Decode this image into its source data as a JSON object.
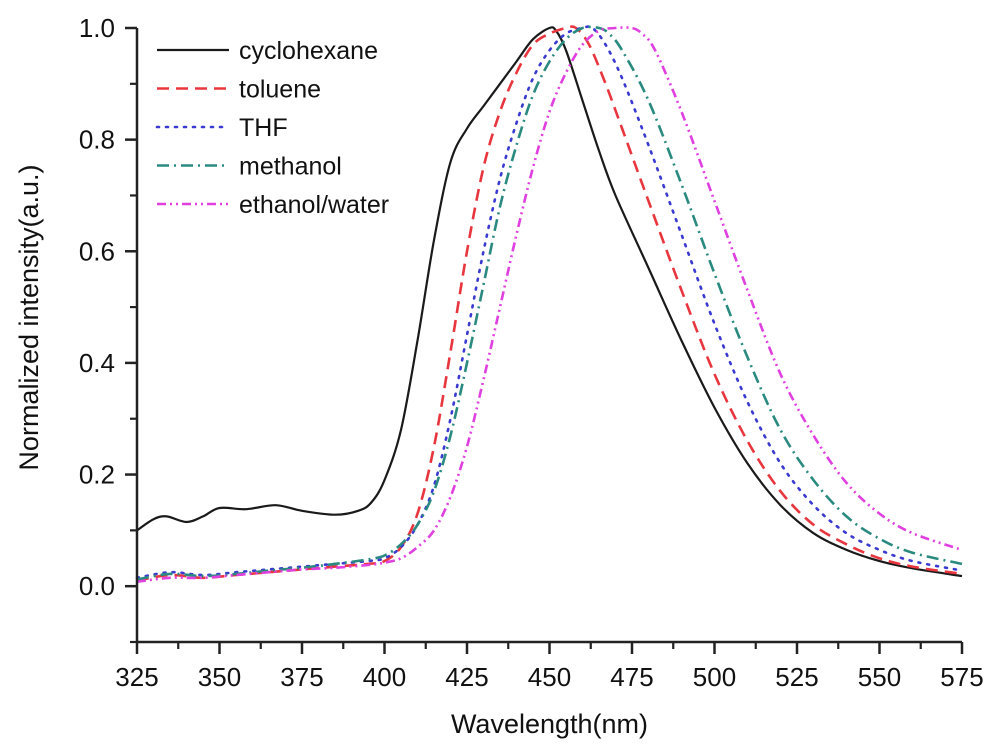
{
  "chart_data": {
    "type": "line",
    "title": "",
    "xlabel": "Wavelength(nm)",
    "ylabel": "Normalized intensity(a.u.)",
    "xlim": [
      325,
      575
    ],
    "ylim": [
      -0.1,
      1.0
    ],
    "xticks": [
      325,
      350,
      375,
      400,
      425,
      450,
      475,
      500,
      525,
      550,
      575
    ],
    "xtick_labels": [
      "325",
      "350",
      "375",
      "400",
      "425",
      "450",
      "475",
      "500",
      "525",
      "550",
      "575"
    ],
    "yticks": [
      0.0,
      0.2,
      0.4,
      0.6,
      0.8,
      1.0
    ],
    "ytick_labels": [
      "0.0",
      "0.2",
      "0.4",
      "0.6",
      "0.8",
      "1.0"
    ],
    "grid": false,
    "legend_position": "top-left",
    "series": [
      {
        "name": "cyclohexane",
        "color": "#1a1a1a",
        "style": "solid",
        "x": [
          325,
          330,
          334,
          340,
          345,
          350,
          358,
          367,
          375,
          385,
          392,
          396,
          400,
          405,
          410,
          415,
          420,
          425,
          430,
          435,
          440,
          445,
          450,
          452,
          455,
          460,
          465,
          470,
          480,
          490,
          500,
          510,
          520,
          530,
          540,
          550,
          560,
          575
        ],
        "y": [
          0.1,
          0.12,
          0.125,
          0.115,
          0.125,
          0.14,
          0.138,
          0.145,
          0.135,
          0.128,
          0.135,
          0.15,
          0.19,
          0.28,
          0.44,
          0.62,
          0.76,
          0.82,
          0.86,
          0.9,
          0.94,
          0.98,
          1.0,
          0.995,
          0.96,
          0.87,
          0.78,
          0.7,
          0.57,
          0.44,
          0.32,
          0.22,
          0.145,
          0.095,
          0.065,
          0.045,
          0.032,
          0.018
        ]
      },
      {
        "name": "toluene",
        "color": "#e8363f",
        "style": "dashed",
        "x": [
          325,
          335,
          345,
          355,
          365,
          375,
          385,
          395,
          400,
          405,
          410,
          415,
          420,
          425,
          430,
          435,
          440,
          445,
          450,
          455,
          458,
          462,
          467,
          472,
          480,
          490,
          500,
          510,
          520,
          530,
          540,
          550,
          560,
          575
        ],
        "y": [
          0.01,
          0.02,
          0.015,
          0.02,
          0.025,
          0.03,
          0.035,
          0.04,
          0.045,
          0.07,
          0.13,
          0.25,
          0.42,
          0.6,
          0.75,
          0.85,
          0.92,
          0.97,
          0.99,
          1.0,
          1.0,
          0.97,
          0.9,
          0.82,
          0.69,
          0.53,
          0.38,
          0.26,
          0.17,
          0.11,
          0.075,
          0.05,
          0.035,
          0.022
        ]
      },
      {
        "name": "THF",
        "color": "#3a3ad0",
        "style": "dotted",
        "x": [
          325,
          335,
          345,
          355,
          365,
          375,
          385,
          395,
          400,
          405,
          410,
          415,
          420,
          425,
          430,
          435,
          440,
          445,
          450,
          455,
          460,
          463,
          467,
          472,
          480,
          490,
          500,
          510,
          520,
          530,
          540,
          550,
          560,
          575
        ],
        "y": [
          0.015,
          0.025,
          0.02,
          0.025,
          0.03,
          0.035,
          0.04,
          0.045,
          0.05,
          0.07,
          0.11,
          0.18,
          0.3,
          0.45,
          0.6,
          0.73,
          0.83,
          0.91,
          0.96,
          0.99,
          1.0,
          1.0,
          0.97,
          0.91,
          0.79,
          0.63,
          0.47,
          0.33,
          0.22,
          0.145,
          0.095,
          0.065,
          0.045,
          0.028
        ]
      },
      {
        "name": "methanol",
        "color": "#2a8a80",
        "style": "dashdot",
        "x": [
          325,
          335,
          345,
          355,
          365,
          375,
          385,
          395,
          400,
          405,
          410,
          415,
          420,
          425,
          430,
          435,
          440,
          445,
          450,
          455,
          460,
          465,
          468,
          472,
          480,
          490,
          500,
          510,
          520,
          530,
          540,
          550,
          560,
          575
        ],
        "y": [
          0.012,
          0.022,
          0.018,
          0.022,
          0.028,
          0.033,
          0.04,
          0.048,
          0.055,
          0.075,
          0.11,
          0.17,
          0.27,
          0.4,
          0.54,
          0.68,
          0.79,
          0.88,
          0.94,
          0.98,
          1.0,
          1.0,
          0.99,
          0.96,
          0.87,
          0.72,
          0.56,
          0.41,
          0.28,
          0.19,
          0.125,
          0.085,
          0.06,
          0.04
        ]
      },
      {
        "name": "ethanol/water",
        "color": "#e040e0",
        "style": "dashdotdot",
        "x": [
          325,
          335,
          345,
          355,
          365,
          375,
          385,
          395,
          400,
          405,
          410,
          415,
          420,
          425,
          430,
          435,
          440,
          445,
          450,
          455,
          460,
          465,
          470,
          475,
          478,
          482,
          490,
          500,
          510,
          520,
          530,
          540,
          550,
          560,
          575
        ],
        "y": [
          0.008,
          0.015,
          0.015,
          0.02,
          0.025,
          0.03,
          0.033,
          0.038,
          0.042,
          0.05,
          0.07,
          0.1,
          0.16,
          0.25,
          0.37,
          0.5,
          0.63,
          0.75,
          0.85,
          0.92,
          0.97,
          0.995,
          1.0,
          1.0,
          0.99,
          0.96,
          0.85,
          0.69,
          0.53,
          0.38,
          0.27,
          0.185,
          0.13,
          0.095,
          0.065
        ]
      }
    ]
  }
}
